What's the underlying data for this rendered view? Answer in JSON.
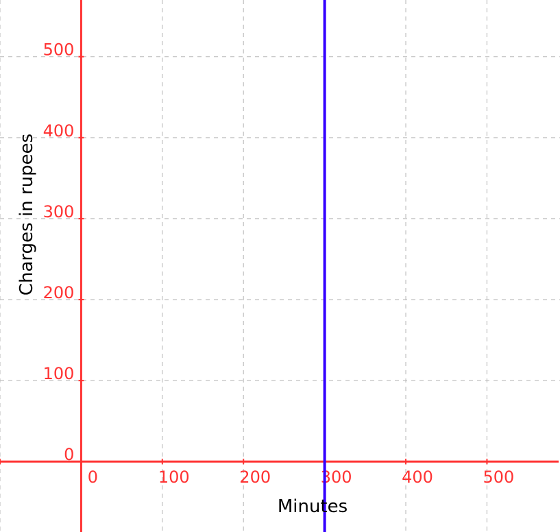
{
  "chart_data": {
    "type": "line",
    "title": "",
    "xlabel": "Minutes",
    "ylabel": "Charges in rupees",
    "xlim": [
      -100,
      590
    ],
    "ylim": [
      -87,
      570
    ],
    "x_ticks": [
      0,
      100,
      200,
      300,
      400,
      500
    ],
    "y_ticks": [
      0,
      100,
      200,
      300,
      400,
      500
    ],
    "x_tick_labels": [
      "0",
      "100",
      "200",
      "300",
      "400",
      "500"
    ],
    "y_tick_labels": [
      "0",
      "100",
      "200",
      "300",
      "400",
      "500"
    ],
    "grid": true,
    "series": [
      {
        "kind": "vertical-line",
        "x": 300,
        "color": "#3300ff"
      }
    ],
    "colors": {
      "axes": "#ff3333",
      "tick_labels": "#ff3333",
      "grid": "#c0c0c0",
      "axis_labels": "#000000"
    }
  }
}
